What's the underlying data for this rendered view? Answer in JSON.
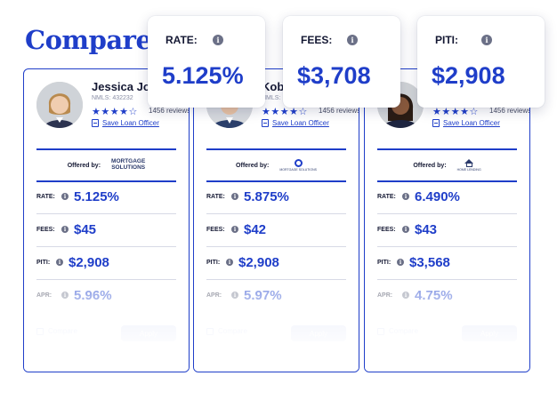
{
  "header": {
    "title": "Compare:"
  },
  "summary": [
    {
      "label": "RATE:",
      "value": "5.125%"
    },
    {
      "label": "FEES:",
      "value": "$3,708"
    },
    {
      "label": "PITI:",
      "value": "$2,908"
    }
  ],
  "icons": {
    "info": "i",
    "star_full": "★",
    "star_empty": "☆"
  },
  "cards": [
    {
      "name": "Jessica Jo",
      "nmls": "NMLS: 432232",
      "stars": "★★★★☆",
      "reviews": "1456 reviews",
      "save_label": "Save Loan Officer",
      "offered_label": "Offered by:",
      "lender_logo_line1": "MORTGAGE",
      "lender_logo_line2": "SOLUTIONS",
      "metrics": [
        {
          "label": "RATE:",
          "value": "5.125%"
        },
        {
          "label": "FEES:",
          "value": "$45"
        },
        {
          "label": "PITI:",
          "value": "$2,908"
        },
        {
          "label": "APR:",
          "value": "5.96%"
        }
      ],
      "compare_label": "Compare",
      "apply_label": "Apply"
    },
    {
      "name": "Kob",
      "nmls": "NMLS:",
      "stars": "★★★★☆",
      "reviews": "1456 reviews",
      "save_label": "Save Loan Officer",
      "offered_label": "Offered by:",
      "lender_logo_small": "MORTGAGE SOLUTIONS",
      "metrics": [
        {
          "label": "RATE:",
          "value": "5.875%"
        },
        {
          "label": "FEES:",
          "value": "$42"
        },
        {
          "label": "PITI:",
          "value": "$2,908"
        },
        {
          "label": "APR:",
          "value": "5.97%"
        }
      ],
      "compare_label": "Compare",
      "apply_label": "Apply"
    },
    {
      "name": "",
      "nmls": "",
      "stars": "★★★★☆",
      "reviews": "1456 reviews",
      "save_label": "Save Loan Officer",
      "offered_label": "Offered by:",
      "lender_logo_small": "HOME LENDING",
      "metrics": [
        {
          "label": "RATE:",
          "value": "6.490%"
        },
        {
          "label": "FEES:",
          "value": "$43"
        },
        {
          "label": "PITI:",
          "value": "$3,568"
        },
        {
          "label": "APR:",
          "value": "4.75%"
        }
      ],
      "compare_label": "Compare",
      "apply_label": "Apply"
    }
  ],
  "colors": {
    "accent": "#1f3ec9",
    "text": "#141833",
    "muted": "#8a8fa6"
  }
}
